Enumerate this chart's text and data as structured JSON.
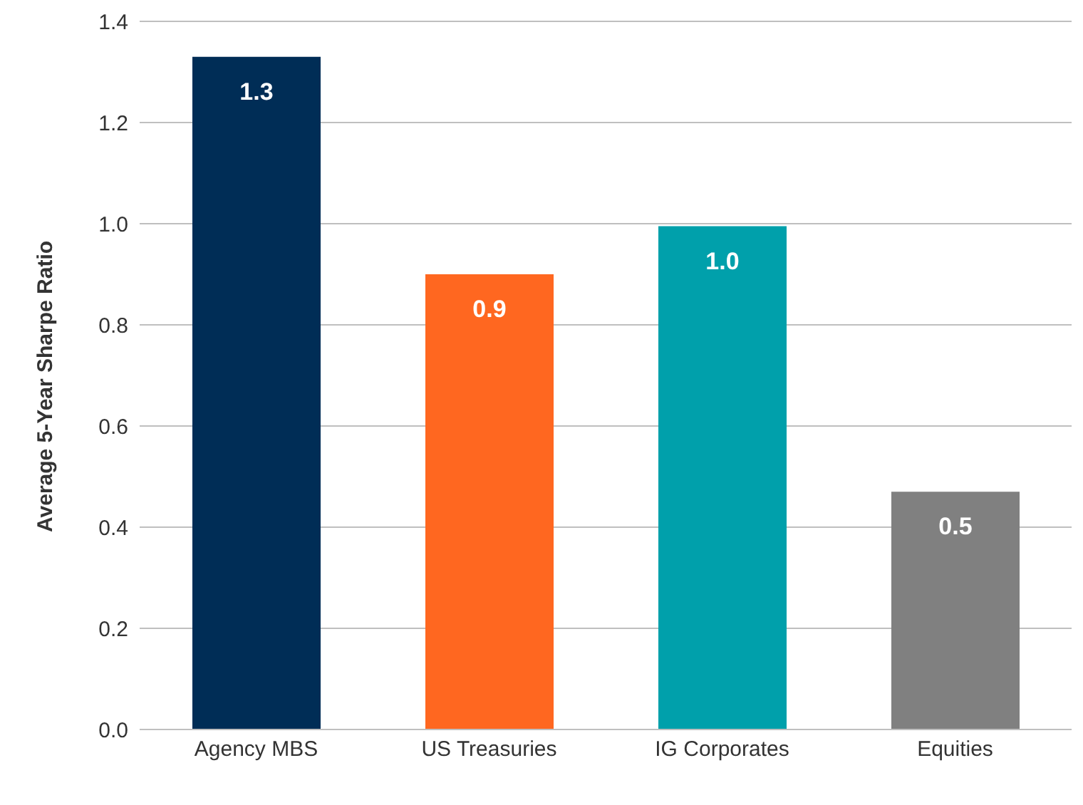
{
  "chart_data": {
    "type": "bar",
    "ylabel": "Average 5-Year Sharpe Ratio",
    "categories": [
      "Agency MBS",
      "US Treasuries",
      "IG Corporates",
      "Equities"
    ],
    "values": [
      1.33,
      0.9,
      0.995,
      0.47
    ],
    "colors": [
      "#002d56",
      "#ff6720",
      "#00a0ab",
      "#808080"
    ],
    "value_labels": [
      "1.3",
      "0.9",
      "1.0",
      "0.5"
    ],
    "ylim": [
      0,
      1.4
    ],
    "yticks": [
      {
        "value": 0,
        "label": "0.0"
      },
      0.2,
      0.4,
      0.6,
      0.8,
      {
        "value": 1,
        "label": "1.0"
      },
      1.2,
      1.4
    ],
    "grid": "y"
  }
}
